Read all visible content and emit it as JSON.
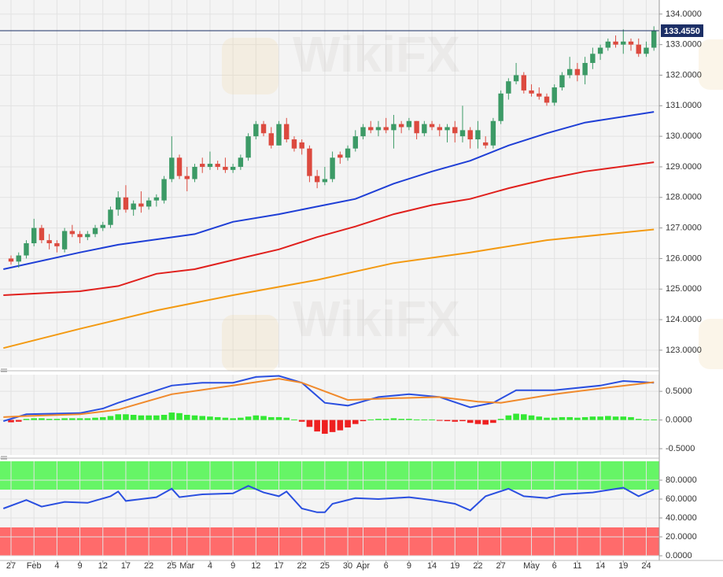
{
  "watermark": "WikiFX",
  "chart_data": [
    {
      "type": "candlestick",
      "up_color": "#3c9a66",
      "down_color": "#dc4a3f",
      "xlim": [
        -1.44,
        84.7
      ],
      "ylim": [
        122.43,
        134.46
      ],
      "yticks": [
        {
          "value": 123,
          "label": "123.0000"
        },
        {
          "value": 124,
          "label": "124.0000"
        },
        {
          "value": 125,
          "label": "125.0000"
        },
        {
          "value": 126,
          "label": "126.0000"
        },
        {
          "value": 127,
          "label": "127.0000"
        },
        {
          "value": 128,
          "label": "128.0000"
        },
        {
          "value": 129,
          "label": "129.0000"
        },
        {
          "value": 130,
          "label": "130.0000"
        },
        {
          "value": 131,
          "label": "131.0000"
        },
        {
          "value": 132,
          "label": "132.0000"
        },
        {
          "value": 133,
          "label": "133.0000"
        },
        {
          "value": 134,
          "label": "134.0000"
        }
      ],
      "open": [
        126.0,
        125.9,
        126.1,
        126.5,
        127.0,
        126.6,
        126.5,
        126.3,
        126.9,
        126.8,
        126.7,
        126.8,
        127.0,
        127.1,
        127.6,
        128.0,
        127.6,
        127.8,
        127.7,
        127.9,
        127.9,
        128.6,
        129.3,
        128.7,
        128.6,
        129.1,
        129.0,
        129.1,
        129.0,
        128.9,
        129.0,
        129.3,
        130.0,
        130.4,
        130.1,
        129.7,
        130.4,
        129.9,
        129.8,
        129.6,
        128.7,
        128.5,
        128.6,
        129.4,
        129.3,
        129.6,
        130.0,
        130.3,
        130.2,
        130.3,
        130.2,
        130.4,
        130.3,
        130.5,
        130.1,
        130.4,
        130.3,
        130.2,
        130.3,
        130.0,
        130.2,
        129.9,
        129.8,
        129.7,
        130.5,
        131.4,
        131.8,
        132.0,
        131.5,
        131.4,
        131.3,
        131.1,
        131.6,
        132.0,
        132.2,
        132.0,
        132.4,
        132.7,
        132.9,
        133.1,
        133.0,
        133.1,
        133.0,
        132.7,
        132.9
      ],
      "high": [
        126.1,
        126.2,
        126.6,
        127.3,
        127.1,
        126.8,
        126.6,
        127.0,
        127.1,
        126.9,
        126.9,
        127.1,
        127.2,
        127.7,
        128.2,
        128.4,
        127.9,
        128.2,
        128.0,
        128.1,
        128.7,
        130.0,
        129.4,
        129.0,
        129.1,
        129.3,
        129.5,
        129.2,
        129.3,
        129.1,
        129.4,
        130.1,
        130.5,
        130.5,
        130.3,
        130.5,
        130.6,
        130.0,
        129.9,
        129.7,
        128.9,
        129.0,
        129.5,
        129.5,
        129.7,
        130.2,
        130.4,
        130.5,
        130.5,
        130.6,
        130.7,
        130.5,
        130.6,
        130.5,
        130.5,
        130.5,
        130.4,
        130.4,
        130.5,
        131.0,
        130.3,
        130.5,
        130.0,
        130.6,
        131.5,
        131.9,
        132.4,
        132.1,
        131.7,
        131.6,
        131.4,
        131.7,
        132.1,
        132.6,
        132.4,
        132.6,
        132.9,
        133.0,
        133.2,
        133.3,
        133.5,
        133.2,
        133.2,
        133.1,
        133.6
      ],
      "low": [
        125.8,
        125.7,
        126.0,
        126.4,
        126.5,
        126.3,
        126.2,
        126.2,
        126.7,
        126.5,
        126.6,
        126.7,
        126.9,
        127.0,
        127.4,
        127.5,
        127.4,
        127.5,
        127.6,
        127.7,
        127.8,
        128.5,
        128.6,
        128.2,
        128.5,
        128.8,
        128.9,
        128.9,
        128.8,
        128.8,
        128.9,
        129.2,
        129.9,
        130.0,
        129.6,
        129.7,
        129.8,
        129.5,
        129.4,
        128.5,
        128.3,
        128.4,
        128.5,
        129.1,
        129.2,
        129.5,
        129.9,
        130.1,
        130.0,
        130.1,
        129.6,
        130.1,
        130.2,
        129.9,
        130.0,
        130.2,
        130.0,
        129.8,
        129.8,
        129.8,
        129.6,
        129.6,
        129.6,
        129.6,
        130.4,
        131.2,
        131.7,
        131.4,
        131.3,
        131.2,
        131.0,
        131.0,
        131.5,
        131.9,
        131.8,
        131.7,
        132.2,
        132.5,
        132.8,
        132.9,
        132.7,
        132.8,
        132.6,
        132.6,
        132.8
      ],
      "close": [
        125.9,
        126.1,
        126.5,
        127.0,
        126.6,
        126.5,
        126.4,
        126.9,
        126.8,
        126.7,
        126.8,
        127.0,
        127.1,
        127.6,
        128.0,
        127.6,
        127.8,
        127.7,
        127.9,
        128.0,
        128.6,
        129.3,
        128.7,
        128.6,
        129.0,
        129.0,
        129.1,
        129.0,
        128.9,
        129.0,
        129.3,
        130.0,
        130.4,
        130.1,
        129.7,
        130.4,
        129.9,
        129.6,
        129.6,
        128.7,
        128.5,
        128.6,
        129.3,
        129.3,
        129.6,
        130.0,
        130.3,
        130.2,
        130.3,
        130.2,
        130.4,
        130.3,
        130.5,
        130.1,
        130.4,
        130.3,
        130.2,
        130.3,
        130.1,
        130.2,
        129.9,
        130.2,
        129.7,
        130.5,
        131.4,
        131.8,
        132.0,
        131.5,
        131.4,
        131.3,
        131.1,
        131.6,
        132.0,
        132.2,
        132.0,
        132.4,
        132.7,
        132.9,
        133.1,
        133.0,
        133.1,
        133.0,
        132.7,
        132.9,
        133.455
      ],
      "lines": [
        {
          "color": "#1f3fd6",
          "x": [
            -1,
            9,
            14,
            24,
            29,
            35,
            40,
            45,
            50,
            55,
            60,
            65,
            70,
            75,
            84
          ],
          "values": [
            125.65,
            126.2,
            126.45,
            126.8,
            127.2,
            127.45,
            127.7,
            127.95,
            128.45,
            128.85,
            129.2,
            129.7,
            130.1,
            130.45,
            130.8
          ]
        },
        {
          "color": "#e0201d",
          "x": [
            -1,
            9,
            14,
            19,
            24,
            29,
            35,
            40,
            45,
            50,
            55,
            60,
            65,
            70,
            75,
            84
          ],
          "values": [
            124.8,
            124.93,
            125.1,
            125.5,
            125.65,
            125.95,
            126.3,
            126.7,
            127.05,
            127.45,
            127.75,
            127.95,
            128.3,
            128.6,
            128.85,
            129.15
          ]
        },
        {
          "color": "#f39a12",
          "x": [
            -1,
            9,
            19,
            29,
            40,
            50,
            60,
            70,
            84
          ],
          "values": [
            123.07,
            123.7,
            124.3,
            124.8,
            125.3,
            125.85,
            126.2,
            126.6,
            126.95
          ]
        }
      ],
      "price_label": {
        "value": 133.455,
        "label": "133.4550",
        "color": "#1c2f66"
      }
    },
    {
      "type": "macd",
      "xlim": [
        -1.44,
        84.7
      ],
      "ylim": [
        -0.61,
        0.79
      ],
      "up_color": "#33e833",
      "down_color": "#ee2020",
      "yticks": [
        {
          "value": -0.5,
          "label": "-0.5000"
        },
        {
          "value": 0,
          "label": "0.0000"
        },
        {
          "value": 0.5,
          "label": "0.5000"
        }
      ],
      "values": [
        -0.04,
        -0.03,
        0.02,
        0.03,
        0.03,
        0.02,
        0.02,
        0.03,
        0.03,
        0.03,
        0.03,
        0.04,
        0.05,
        0.07,
        0.1,
        0.1,
        0.09,
        0.08,
        0.08,
        0.08,
        0.09,
        0.13,
        0.12,
        0.09,
        0.08,
        0.07,
        0.06,
        0.05,
        0.04,
        0.03,
        0.04,
        0.06,
        0.08,
        0.07,
        0.05,
        0.05,
        0.04,
        0.01,
        -0.03,
        -0.12,
        -0.2,
        -0.24,
        -0.21,
        -0.18,
        -0.13,
        -0.07,
        -0.02,
        0.01,
        0.02,
        0.02,
        0.03,
        0.02,
        0.02,
        0.01,
        0.01,
        0.01,
        -0.01,
        -0.02,
        -0.03,
        -0.02,
        -0.05,
        -0.07,
        -0.08,
        -0.05,
        0.02,
        0.08,
        0.11,
        0.1,
        0.08,
        0.06,
        0.04,
        0.04,
        0.05,
        0.05,
        0.04,
        0.05,
        0.06,
        0.06,
        0.07,
        0.06,
        0.06,
        0.05,
        0.02,
        0.01,
        0.01
      ],
      "lines": [
        {
          "color": "#2a4fe0",
          "x": [
            -1,
            2,
            9,
            12,
            14,
            21,
            25,
            29,
            32,
            35,
            38,
            41,
            44,
            48,
            52,
            56,
            60,
            63,
            66,
            71,
            77,
            80,
            84
          ],
          "values": [
            -0.02,
            0.1,
            0.12,
            0.2,
            0.3,
            0.6,
            0.65,
            0.65,
            0.75,
            0.77,
            0.65,
            0.3,
            0.25,
            0.4,
            0.45,
            0.4,
            0.22,
            0.3,
            0.52,
            0.52,
            0.6,
            0.68,
            0.65
          ]
        },
        {
          "color": "#f08a2c",
          "x": [
            -1,
            2,
            9,
            14,
            21,
            29,
            35,
            38,
            44,
            50,
            56,
            61,
            64,
            71,
            77,
            84
          ],
          "values": [
            0.05,
            0.07,
            0.1,
            0.18,
            0.45,
            0.6,
            0.72,
            0.65,
            0.35,
            0.38,
            0.4,
            0.32,
            0.3,
            0.45,
            0.55,
            0.66
          ]
        }
      ]
    },
    {
      "type": "rsi",
      "xlim": [
        -1.44,
        84.7
      ],
      "ylim": [
        0,
        100
      ],
      "yticks": [
        {
          "value": 0,
          "label": "0.0000"
        },
        {
          "value": 20,
          "label": "20.0000"
        },
        {
          "value": 40,
          "label": "40.0000"
        },
        {
          "value": 60,
          "label": "60.0000"
        },
        {
          "value": 80,
          "label": "80.0000"
        }
      ],
      "zones": [
        {
          "from": 70,
          "to": 100,
          "color": "#66f566"
        },
        {
          "from": 0,
          "to": 30,
          "color": "#ff6b6b"
        }
      ],
      "line": {
        "color": "#2a4fe0",
        "x": [
          -1,
          2,
          4,
          7,
          10,
          13,
          14,
          15,
          19,
          21,
          22,
          25,
          29,
          31,
          33,
          35,
          36,
          38,
          40,
          41,
          42,
          45,
          48,
          52,
          55,
          58,
          60,
          62,
          65,
          67,
          70,
          72,
          76,
          80,
          82,
          84
        ],
        "values": [
          50,
          59,
          52,
          57,
          56,
          63,
          68,
          58,
          62,
          71,
          62,
          65,
          66,
          74,
          67,
          63,
          68,
          50,
          46,
          46,
          55,
          61,
          60,
          62,
          59,
          55,
          48,
          63,
          71,
          63,
          61,
          65,
          67,
          72,
          63,
          70
        ]
      },
      "xticks": [
        {
          "value": 0,
          "label": "27"
        },
        {
          "value": 3,
          "label": "Feb"
        },
        {
          "value": 6,
          "label": "4"
        },
        {
          "value": 9,
          "label": "9"
        },
        {
          "value": 12,
          "label": "12"
        },
        {
          "value": 15,
          "label": "17"
        },
        {
          "value": 18,
          "label": "22"
        },
        {
          "value": 21,
          "label": "25"
        },
        {
          "value": 23,
          "label": "Mar"
        },
        {
          "value": 26,
          "label": "4"
        },
        {
          "value": 29,
          "label": "9"
        },
        {
          "value": 32,
          "label": "12"
        },
        {
          "value": 35,
          "label": "17"
        },
        {
          "value": 38,
          "label": "22"
        },
        {
          "value": 41,
          "label": "25"
        },
        {
          "value": 44,
          "label": "30"
        },
        {
          "value": 46,
          "label": "Apr"
        },
        {
          "value": 49,
          "label": "6"
        },
        {
          "value": 52,
          "label": "9"
        },
        {
          "value": 55,
          "label": "14"
        },
        {
          "value": 58,
          "label": "19"
        },
        {
          "value": 61,
          "label": "22"
        },
        {
          "value": 64,
          "label": "27"
        },
        {
          "value": 68,
          "label": "May"
        },
        {
          "value": 71,
          "label": "6"
        },
        {
          "value": 74,
          "label": "11"
        },
        {
          "value": 77,
          "label": "14"
        },
        {
          "value": 80,
          "label": "19"
        },
        {
          "value": 83,
          "label": "24"
        }
      ]
    }
  ]
}
